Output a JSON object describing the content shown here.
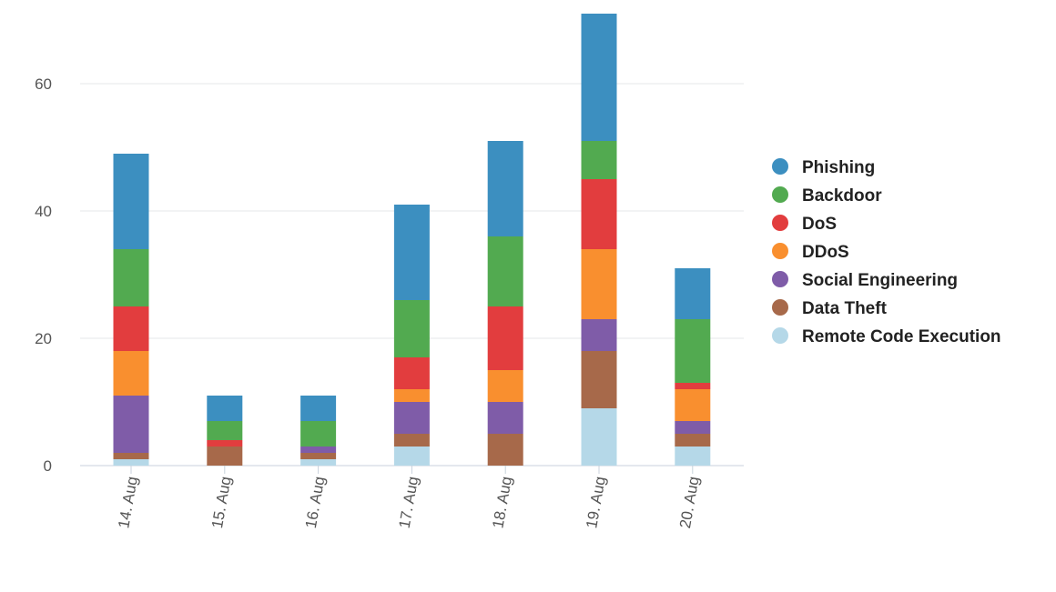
{
  "chart_data": {
    "type": "bar",
    "stacked": true,
    "title": "",
    "xlabel": "",
    "ylabel": "",
    "categories": [
      "14. Aug",
      "15. Aug",
      "16. Aug",
      "17. Aug",
      "18. Aug",
      "19. Aug",
      "20. Aug"
    ],
    "y_ticks": [
      0,
      20,
      40,
      60
    ],
    "y_tick_labels": [
      "0",
      "20",
      "40",
      "60"
    ],
    "ylim": [
      0,
      71
    ],
    "grid": "horizontal",
    "legend_position": "right",
    "series": [
      {
        "name": "Remote Code Execution",
        "color": "#b5d8e8",
        "values": [
          1,
          0,
          1,
          3,
          0,
          9,
          3
        ]
      },
      {
        "name": "Data Theft",
        "color": "#a7694a",
        "values": [
          1,
          3,
          1,
          2,
          5,
          9,
          2
        ]
      },
      {
        "name": "Social Engineering",
        "color": "#7f5ca8",
        "values": [
          9,
          0,
          1,
          5,
          5,
          5,
          2
        ]
      },
      {
        "name": "DDoS",
        "color": "#f98f2f",
        "values": [
          7,
          0,
          0,
          2,
          5,
          11,
          5
        ]
      },
      {
        "name": "DoS",
        "color": "#e23d3e",
        "values": [
          7,
          1,
          0,
          5,
          10,
          11,
          1
        ]
      },
      {
        "name": "Backdoor",
        "color": "#52aa50",
        "values": [
          9,
          3,
          4,
          9,
          11,
          6,
          10
        ]
      },
      {
        "name": "Phishing",
        "color": "#3c8fc0",
        "values": [
          15,
          4,
          4,
          15,
          15,
          20,
          8
        ]
      }
    ],
    "legend_order": [
      "Phishing",
      "Backdoor",
      "DoS",
      "DDoS",
      "Social Engineering",
      "Data Theft",
      "Remote Code Execution"
    ]
  }
}
